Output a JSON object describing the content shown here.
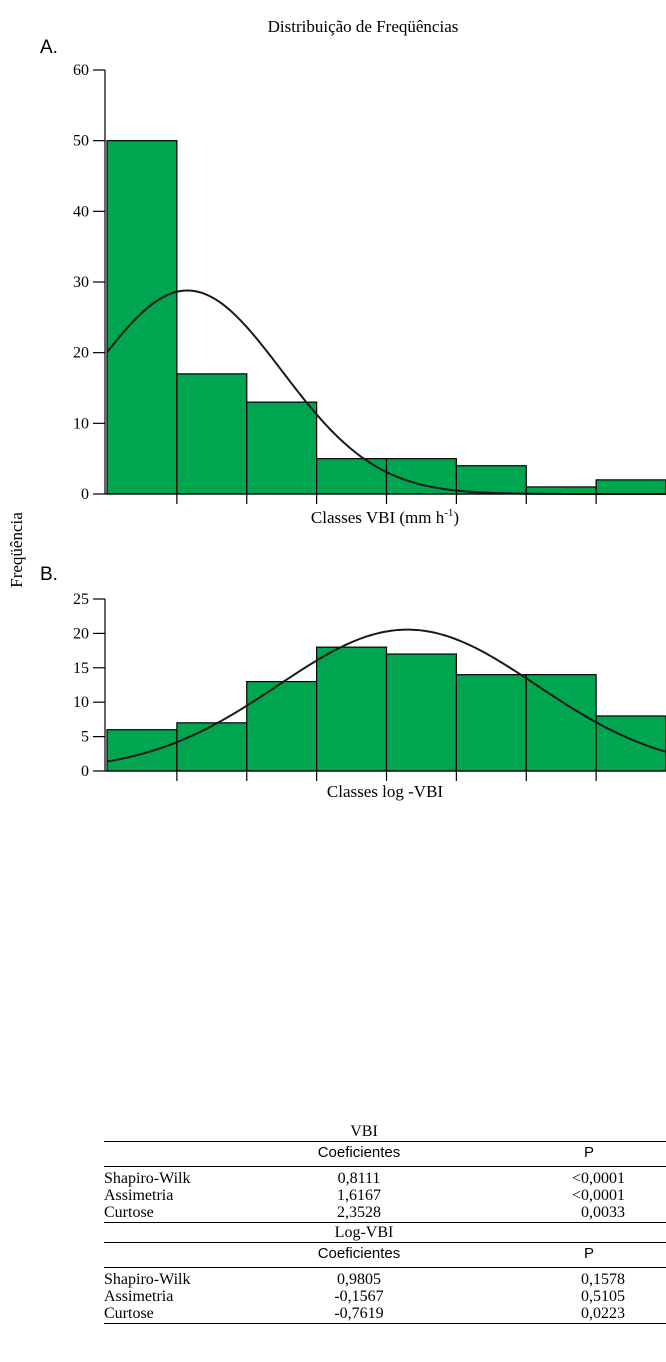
{
  "figure_title": "Distribuição de Freqüências",
  "shared_ylabel": "Freqüência",
  "chart_data": [
    {
      "type": "bar",
      "panel_label": "A.",
      "xlabel_main": "Classes VBI (mm h",
      "xlabel_sup": "-1",
      "xlabel_close": ")",
      "ylim": [
        0,
        60
      ],
      "yticks": [
        0,
        10,
        20,
        30,
        40,
        50,
        60
      ],
      "values": [
        50,
        17,
        13,
        5,
        5,
        4,
        1,
        2
      ],
      "bar_color": "#00a54f",
      "curve": {
        "type": "normal",
        "peak": 28.8,
        "peak_bin": 1.15,
        "sd_bins": 1.35
      }
    },
    {
      "type": "bar",
      "panel_label": "B.",
      "xlabel": "Classes log -VBI",
      "ylim": [
        0,
        25
      ],
      "yticks": [
        0,
        5,
        10,
        15,
        20,
        25
      ],
      "values": [
        6,
        7,
        13,
        18,
        17,
        14,
        14,
        8
      ],
      "bar_color": "#00a54f",
      "curve": {
        "type": "normal",
        "peak": 20.55,
        "peak_bin": 4.3,
        "sd_bins": 1.85
      }
    }
  ],
  "stats": {
    "vbi": {
      "title": "VBI",
      "col_coef": "Coeficientes",
      "col_p": "P",
      "rows": [
        {
          "label": "Shapiro-Wilk",
          "coef": "0,8111",
          "p": "<0,0001"
        },
        {
          "label": "Assimetria",
          "coef": "1,6167",
          "p": "<0,0001"
        },
        {
          "label": "Curtose",
          "coef": "2,3528",
          "p": "0,0033"
        }
      ]
    },
    "logvbi": {
      "title": "Log-VBI",
      "col_coef": "Coeficientes",
      "col_p": "P",
      "rows": [
        {
          "label": "Shapiro-Wilk",
          "coef": "0,9805",
          "p": "0,1578"
        },
        {
          "label": "Assimetria",
          "coef": "-0,1567",
          "p": "0,5105"
        },
        {
          "label": "Curtose",
          "coef": "-0,7619",
          "p": "0,0223"
        }
      ]
    }
  }
}
